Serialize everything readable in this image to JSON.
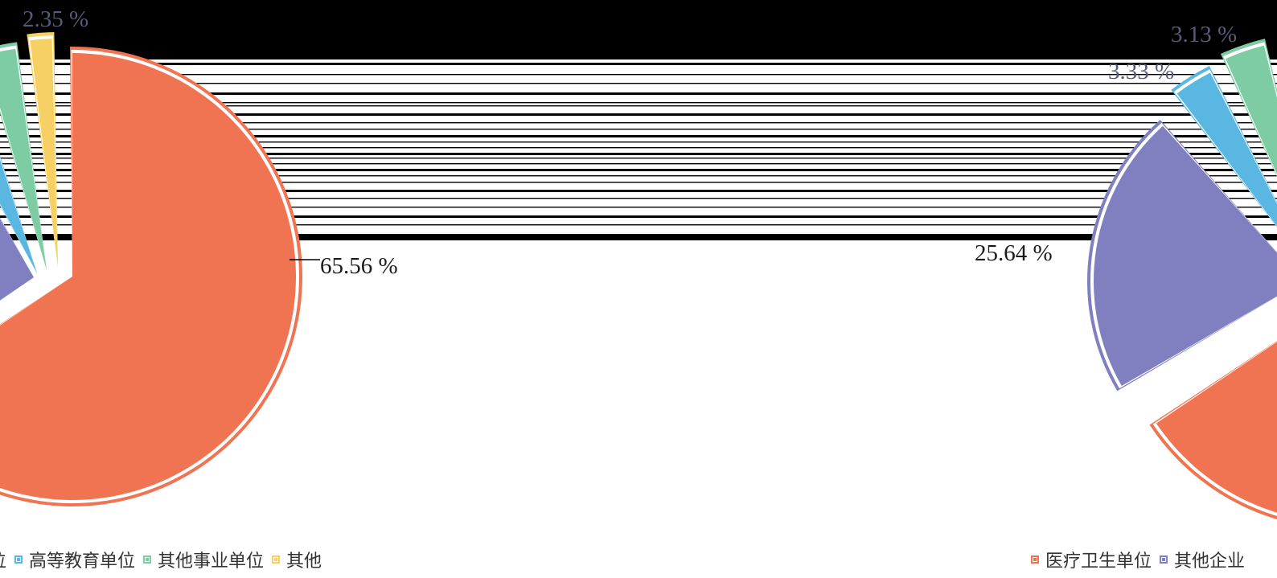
{
  "colors": {
    "orange": "#f07451",
    "purple": "#8080c0",
    "blue": "#5ab7e2",
    "green": "#7dcca4",
    "yellow": "#f7d063"
  },
  "chart_data": [
    {
      "type": "pie",
      "title": "",
      "slices": [
        {
          "name": "医疗卫生单位",
          "value": 65.56,
          "label": "65.56 %",
          "color": "#f07451"
        },
        {
          "name": "其他企业",
          "value": null,
          "label": "",
          "color": "#8080c0"
        },
        {
          "name": "高等教育单位",
          "value": null,
          "label": "",
          "color": "#5ab7e2"
        },
        {
          "name": "其他事业单位",
          "value": null,
          "label": "",
          "color": "#7dcca4"
        },
        {
          "name": "其他",
          "value": 2.35,
          "label": "2.35 %",
          "color": "#f7d063"
        }
      ],
      "legend_visible": [
        {
          "text": "位",
          "color": "#8080c0"
        },
        {
          "text": "高等教育单位",
          "color": "#5ab7e2"
        },
        {
          "text": "其他事业单位",
          "color": "#7dcca4"
        },
        {
          "text": "其他",
          "color": "#f7d063"
        }
      ]
    },
    {
      "type": "pie",
      "title": "",
      "slices": [
        {
          "name": "医疗卫生单位",
          "value": null,
          "label": "",
          "color": "#f07451"
        },
        {
          "name": "其他企业",
          "value": 25.64,
          "label": "25.64 %",
          "color": "#8080c0"
        },
        {
          "name": "高等教育单位",
          "value": 3.33,
          "label": "3.33 %",
          "color": "#5ab7e2"
        },
        {
          "name": "其他事业单位",
          "value": 3.13,
          "label": "3.13 %",
          "color": "#7dcca4"
        }
      ],
      "legend_visible": [
        {
          "text": "医疗卫生单位",
          "color": "#f07451"
        },
        {
          "text": "其他企业",
          "color": "#8080c0"
        }
      ]
    }
  ]
}
